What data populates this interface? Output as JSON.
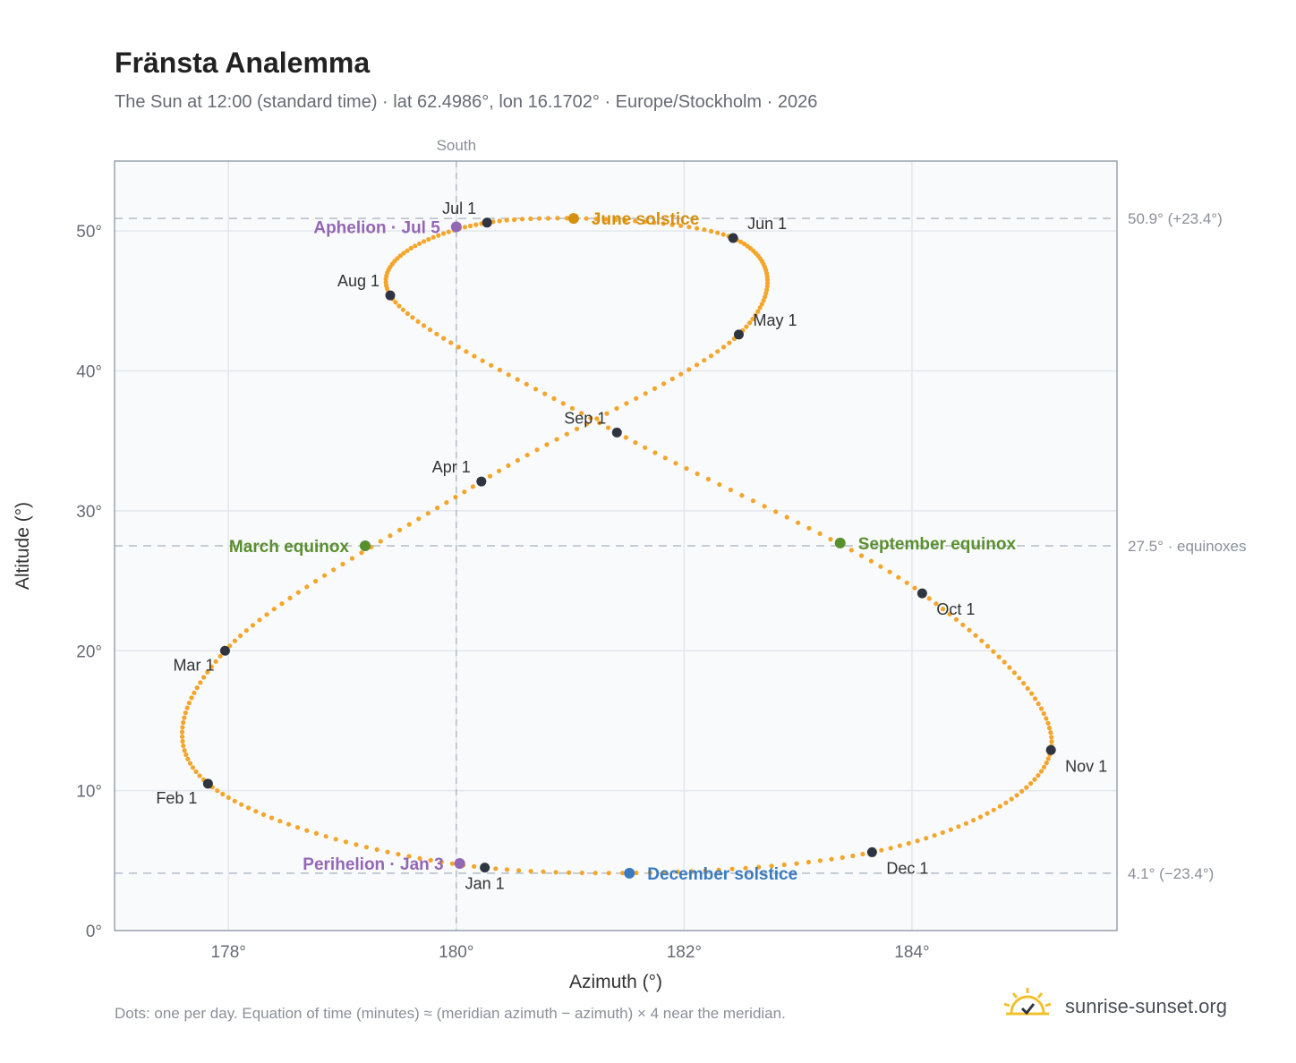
{
  "title": "Fränsta Analemma",
  "subtitle": "The Sun at 12:00 (standard time) · lat 62.4986°, lon 16.1702° · Europe/Stockholm · 2026",
  "footnote": "Dots: one per day. Equation of time (minutes) ≈ (meridian azimuth − azimuth) × 4 near the meridian.",
  "brand": {
    "name": "sunrise-sunset.org",
    "icon": "sun-logo-icon"
  },
  "colors": {
    "curve": "#f4a52a",
    "month_marker": "#2f3540",
    "equinox": "#5a8f2e",
    "june_solstice": "#d4900e",
    "december_solstice": "#3a7bbf",
    "apsis": "#9467b5",
    "reference_line": "#b4bcc6",
    "grid": "#e3e7ec",
    "plot_background": "#f8fafc"
  },
  "chart_data": {
    "type": "scatter",
    "xlabel": "Azimuth (°)",
    "ylabel": "Altitude (°)",
    "xlim": [
      177.0,
      185.8
    ],
    "ylim": [
      0,
      55
    ],
    "x_ticks": [
      178,
      180,
      182,
      184
    ],
    "x_tick_labels": [
      "178°",
      "180°",
      "182°",
      "184°"
    ],
    "y_ticks": [
      0,
      10,
      20,
      30,
      40,
      50
    ],
    "y_tick_labels": [
      "0°",
      "10°",
      "20°",
      "30°",
      "40°",
      "50°"
    ],
    "grid": true,
    "south_line": {
      "azimuth": 180.0,
      "label": "South"
    },
    "reference_lines": [
      {
        "altitude": 50.9,
        "label": "50.9° (+23.4°)"
      },
      {
        "altitude": 27.5,
        "label": "27.5° · equinoxes"
      },
      {
        "altitude": 4.1,
        "label": "4.1° (−23.4°)"
      }
    ],
    "daily_series": {
      "name": "daily positions",
      "note": "one dot per day",
      "points_per_year": 365,
      "monthly_anchors": [
        {
          "day": 1,
          "azimuth": 180.25,
          "altitude": 4.5
        },
        {
          "day": 32,
          "azimuth": 177.82,
          "altitude": 10.5
        },
        {
          "day": 60,
          "azimuth": 177.97,
          "altitude": 20.0
        },
        {
          "day": 91,
          "azimuth": 180.22,
          "altitude": 32.1
        },
        {
          "day": 121,
          "azimuth": 182.48,
          "altitude": 42.6
        },
        {
          "day": 152,
          "azimuth": 182.43,
          "altitude": 49.5
        },
        {
          "day": 182,
          "azimuth": 180.27,
          "altitude": 50.6
        },
        {
          "day": 213,
          "azimuth": 179.42,
          "altitude": 45.4
        },
        {
          "day": 244,
          "azimuth": 181.41,
          "altitude": 35.6
        },
        {
          "day": 274,
          "azimuth": 184.09,
          "altitude": 24.1
        },
        {
          "day": 305,
          "azimuth": 185.22,
          "altitude": 12.9
        },
        {
          "day": 335,
          "azimuth": 183.65,
          "altitude": 5.6
        },
        {
          "day": 366,
          "azimuth": 180.25,
          "altitude": 4.5
        }
      ]
    },
    "month_markers": [
      {
        "label": "Jan 1",
        "azimuth": 180.25,
        "altitude": 4.5,
        "pos": "below"
      },
      {
        "label": "Feb 1",
        "azimuth": 177.82,
        "altitude": 10.5,
        "pos": "below-left"
      },
      {
        "label": "Mar 1",
        "azimuth": 177.97,
        "altitude": 20.0,
        "pos": "below-left"
      },
      {
        "label": "Apr 1",
        "azimuth": 180.22,
        "altitude": 32.1,
        "pos": "above-left"
      },
      {
        "label": "May 1",
        "azimuth": 182.48,
        "altitude": 42.6,
        "pos": "above-right"
      },
      {
        "label": "Jun 1",
        "azimuth": 182.43,
        "altitude": 49.5,
        "pos": "above-right"
      },
      {
        "label": "Jul 1",
        "azimuth": 180.27,
        "altitude": 50.6,
        "pos": "above-left"
      },
      {
        "label": "Aug 1",
        "azimuth": 179.42,
        "altitude": 45.4,
        "pos": "above-left"
      },
      {
        "label": "Sep 1",
        "azimuth": 181.41,
        "altitude": 35.6,
        "pos": "above-left"
      },
      {
        "label": "Oct 1",
        "azimuth": 184.09,
        "altitude": 24.1,
        "pos": "below-right"
      },
      {
        "label": "Nov 1",
        "azimuth": 185.22,
        "altitude": 12.9,
        "pos": "below-right"
      },
      {
        "label": "Dec 1",
        "azimuth": 183.65,
        "altitude": 5.6,
        "pos": "below-right"
      }
    ],
    "events": [
      {
        "label": "June solstice",
        "azimuth": 181.03,
        "altitude": 50.9,
        "color_key": "june_solstice",
        "pos": "right"
      },
      {
        "label": "December solstice",
        "azimuth": 181.52,
        "altitude": 4.1,
        "color_key": "december_solstice",
        "pos": "right"
      },
      {
        "label": "March equinox",
        "azimuth": 179.2,
        "altitude": 27.5,
        "color_key": "equinox",
        "pos": "left"
      },
      {
        "label": "September equinox",
        "azimuth": 183.37,
        "altitude": 27.7,
        "color_key": "equinox",
        "pos": "right"
      },
      {
        "label": "Aphelion · Jul 5",
        "azimuth": 180.0,
        "altitude": 50.3,
        "color_key": "apsis",
        "pos": "left"
      },
      {
        "label": "Perihelion · Jan 3",
        "azimuth": 180.03,
        "altitude": 4.8,
        "color_key": "apsis",
        "pos": "left"
      }
    ]
  }
}
